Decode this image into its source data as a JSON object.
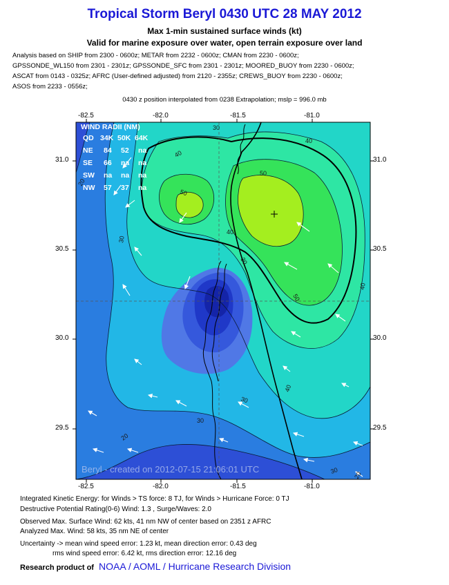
{
  "header": {
    "title": "Tropical Storm Beryl 0430 UTC 28 MAY 2012",
    "subtitle1": "Max 1-min sustained surface winds (kt)",
    "subtitle2": "Valid for marine exposure over water, open terrain exposure over land"
  },
  "analysis_lines": [
    "Analysis based on SHIP from 2300 - 0600z; METAR from 2232 - 0600z; CMAN from 2230 - 0600z;",
    "GPSSONDE_WL150 from 2301 - 2301z; GPSSONDE_SFC from 2301 - 2301z; MOORED_BUOY from 2230 - 0600z;",
    "ASCAT from 0143 - 0325z; AFRC (User-defined adjusted) from 2120 - 2355z; CREWS_BUOY from 2230 - 0600z;",
    "ASOS from 2233 - 0556z;"
  ],
  "interpolation_note": "0430 z position interpolated from 0238 Extrapolation; mslp = 996.0 mb",
  "map": {
    "lon_ticks": [
      "-82.5",
      "-82.0",
      "-81.5",
      "-81.0"
    ],
    "lat_ticks": [
      "31.0",
      "30.5",
      "30.0",
      "29.5"
    ],
    "contour_labels": [
      "20",
      "20",
      "30",
      "30",
      "30",
      "30",
      "30",
      "40",
      "40",
      "40",
      "40",
      "40",
      "50",
      "50",
      "50",
      "20",
      "30"
    ],
    "credit": "Beryl - created on 2012-07-15 21:06:01 UTC",
    "colors": {
      "ocean_base": "#2d4fd6",
      "level_20": "#2a7de0",
      "level_30": "#22b7e6",
      "level_35": "#22d6c8",
      "level_40": "#2ee6a4",
      "level_45": "#35e35a",
      "level_50": "#a4ee1f",
      "low_1": "#5078e6",
      "low_2": "#3558dc",
      "low_3": "#1f38c8",
      "low_4": "#1424a8"
    }
  },
  "wind_radii": {
    "title": "WIND RADII (NM)",
    "header": [
      "QD",
      "34K",
      "50K",
      "64K"
    ],
    "rows": [
      [
        "NE",
        "84",
        "52",
        "na"
      ],
      [
        "SE",
        "66",
        "na",
        "na"
      ],
      [
        "SW",
        "na",
        "na",
        "na"
      ],
      [
        "NW",
        "57",
        "37",
        "na"
      ]
    ]
  },
  "footer": {
    "ike": "Integrated Kinetic Energy: for Winds > TS force: 8 TJ, for Winds > Hurricane Force: 0 TJ",
    "dpr": "Destructive Potential Rating(0-6)  Wind: 1.3 , Surge/Waves: 2.0",
    "observed": "Observed Max. Surface Wind: 62 kts, 41 nm NW of center based on 2351 z AFRC",
    "analyzed": "Analyzed Max. Wind: 58 kts, 35 nm  NE of center",
    "uncertainty1": "Uncertainty -> mean wind speed error: 1.23 kt, mean direction error: 0.43 deg",
    "uncertainty2": "rms wind speed error: 6.42 kt, rms direction error: 12.16 deg",
    "research_prefix": "Research product of",
    "research_org": "NOAA / AOML / Hurricane Research Division"
  }
}
